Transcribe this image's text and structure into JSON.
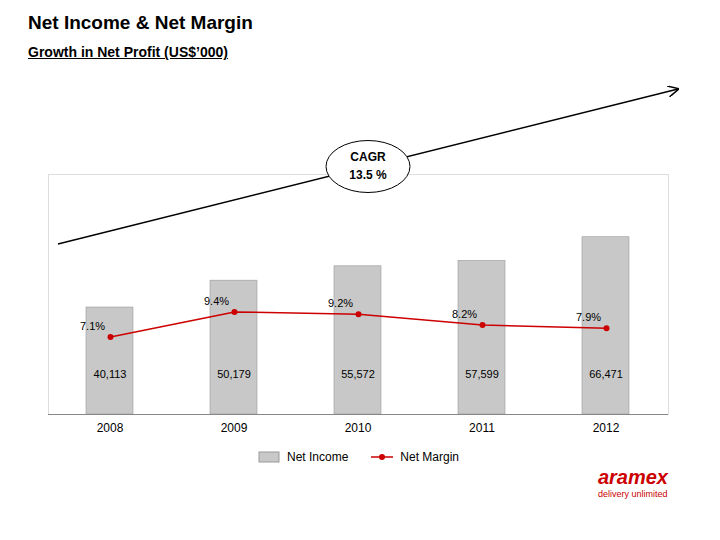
{
  "chart_data": {
    "type": "bar",
    "title": "Net Income & Net Margin",
    "subtitle": "Growth in Net Profit (US$’000)",
    "categories": [
      "2008",
      "2009",
      "2010",
      "2011",
      "2012"
    ],
    "series": [
      {
        "name": "Net Income",
        "type": "bar",
        "color": "#C8C8C8",
        "values": [
          40113,
          50179,
          55572,
          57599,
          66471
        ],
        "value_labels": [
          "40,113",
          "50,179",
          "55,572",
          "57,599",
          "66,471"
        ]
      },
      {
        "name": "Net Margin",
        "type": "line",
        "axis": "y2",
        "color": "#CC0000",
        "marker": "o",
        "values": [
          7.1,
          9.4,
          9.2,
          8.2,
          7.9
        ],
        "value_labels": [
          "7.1%",
          "9.4%",
          "9.2%",
          "8.2%",
          "7.9%"
        ]
      }
    ],
    "ylim": [
      0,
      90000
    ],
    "y2lim": [
      0,
      22
    ],
    "tick_labels": "x",
    "grid": false,
    "data_labels": true,
    "legend": "bottom",
    "annotations": [
      "CAGR",
      "13.5 %",
      "aramex",
      "delivery unlimited"
    ]
  }
}
